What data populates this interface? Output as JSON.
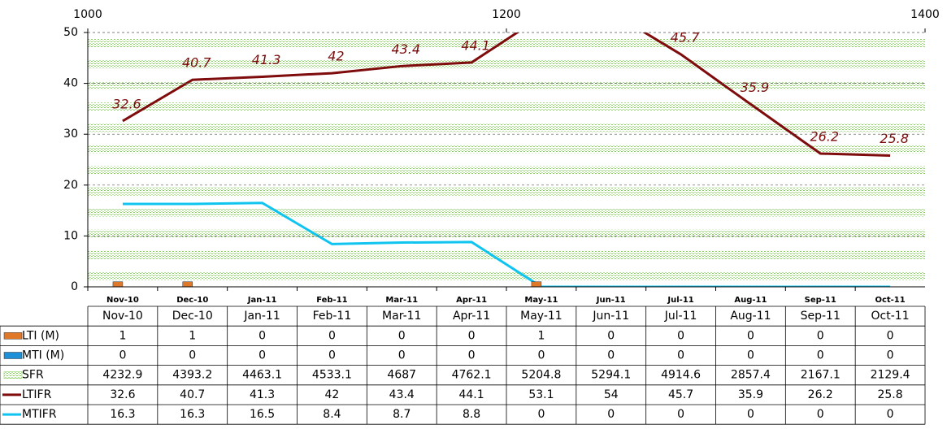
{
  "chart_data": {
    "type": "combo",
    "categories": [
      "Nov-10",
      "Dec-10",
      "Jan-11",
      "Feb-11",
      "Mar-11",
      "Apr-11",
      "May-11",
      "Jun-11",
      "Jul-11",
      "Aug-11",
      "Sep-11",
      "Oct-11"
    ],
    "ylim": [
      0,
      50
    ],
    "yticks": [
      0,
      10,
      20,
      30,
      40,
      50
    ],
    "x2lim": [
      1000,
      1400
    ],
    "x2ticks": [
      1000,
      1200,
      1400
    ],
    "grid": true,
    "series": [
      {
        "name": "LTI (M)",
        "kind": "bar",
        "color": "#e0782a",
        "values": [
          1,
          1,
          0,
          0,
          0,
          0,
          1,
          0,
          0,
          0,
          0,
          0
        ]
      },
      {
        "name": "MTI (M)",
        "kind": "bar",
        "color": "#1e90d8",
        "values": [
          0,
          0,
          0,
          0,
          0,
          0,
          0,
          0,
          0,
          0,
          0,
          0
        ]
      },
      {
        "name": "SFR",
        "kind": "hbar",
        "axis": "x2",
        "color": "#8ad060",
        "values": [
          4232.9,
          4393.2,
          4463.1,
          4533.1,
          4687,
          4762.1,
          5204.8,
          5294.1,
          4914.6,
          2857.4,
          2167.1,
          2129.4
        ]
      },
      {
        "name": "LTIFR",
        "kind": "line",
        "color": "#7f0c0c",
        "labels": true,
        "values": [
          32.6,
          40.7,
          41.3,
          42,
          43.4,
          44.1,
          53.1,
          54,
          45.7,
          35.9,
          26.2,
          25.8
        ]
      },
      {
        "name": "MTIFR",
        "kind": "line",
        "color": "#10c4f0",
        "values": [
          16.3,
          16.3,
          16.5,
          8.4,
          8.7,
          8.8,
          0,
          0,
          0,
          0,
          0,
          0
        ]
      }
    ]
  }
}
